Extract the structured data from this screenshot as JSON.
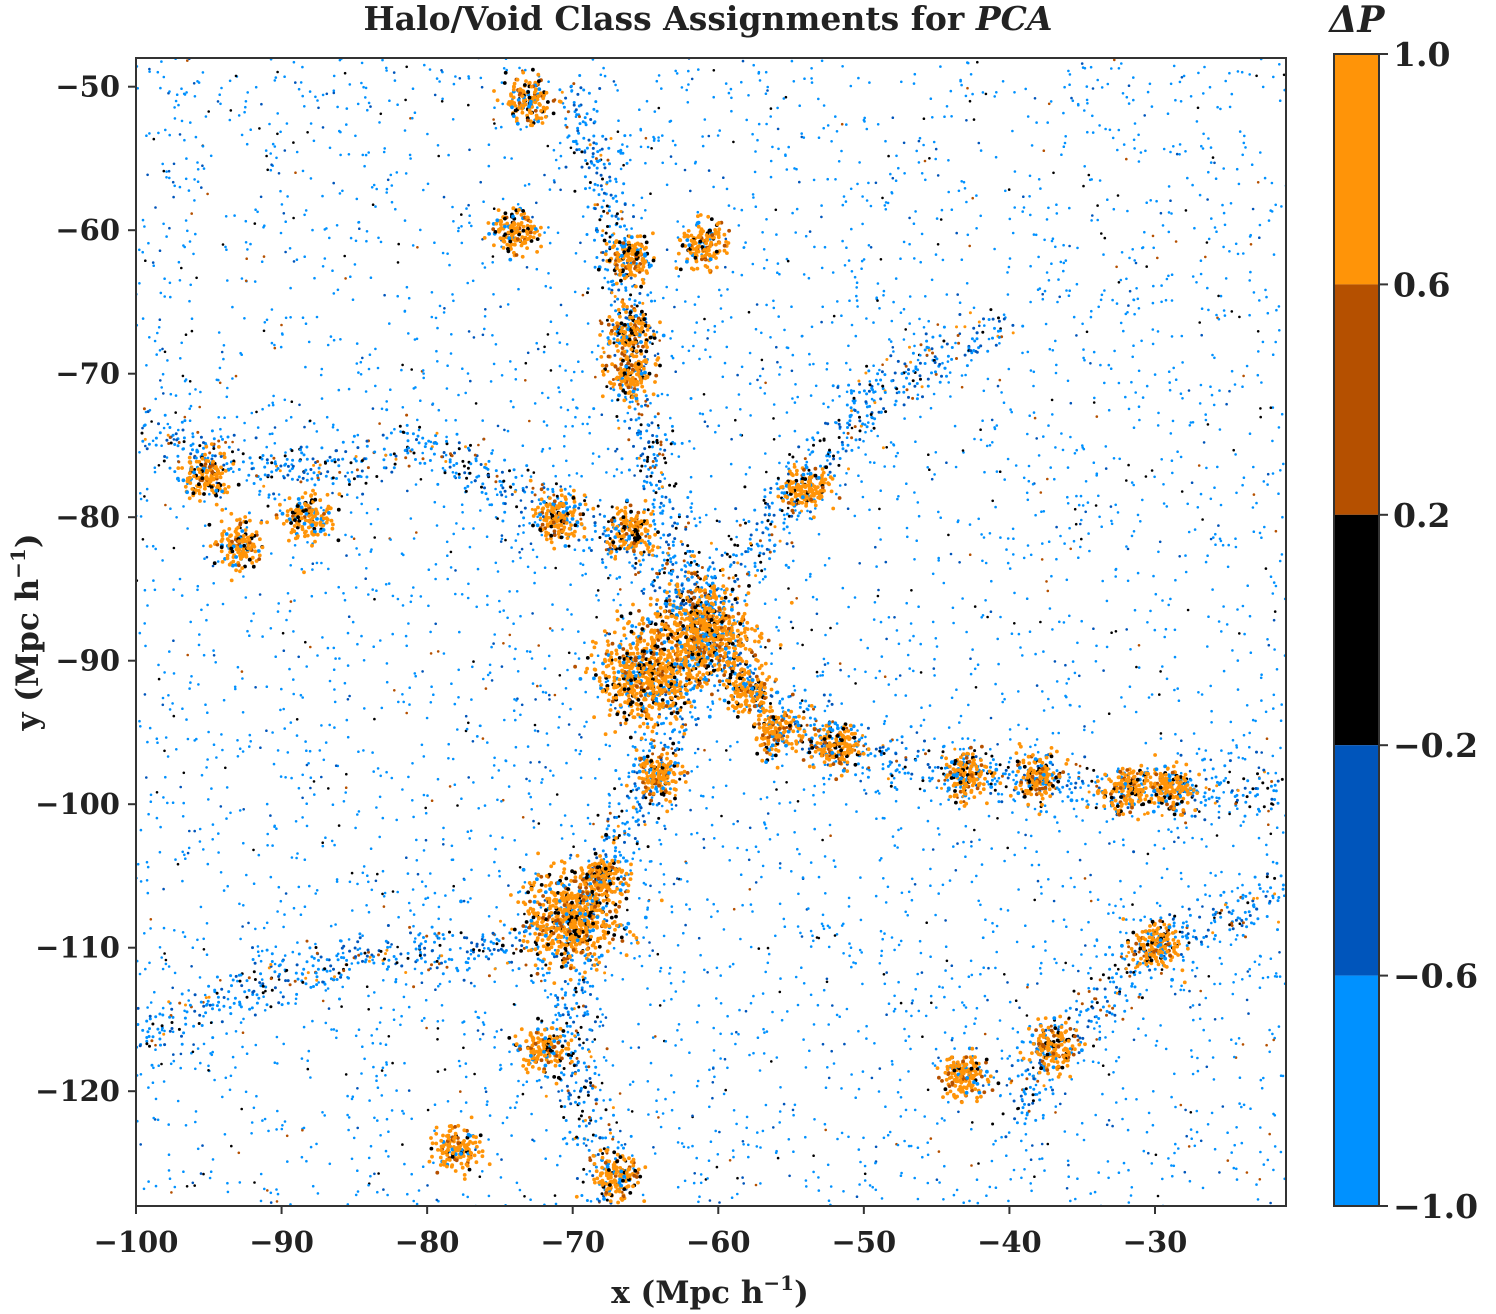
{
  "chart_data": {
    "type": "scatter",
    "title": "Halo/Void Class Assignments for",
    "title_math": "PCA",
    "xlabel": "x (Mpc h",
    "ylabel": "y (Mpc h",
    "unit_exponent": "−1",
    "xlim": [
      -100,
      -21
    ],
    "ylim": [
      -128,
      -48
    ],
    "x_ticks": [
      "−100",
      "−90",
      "−80",
      "−70",
      "−60",
      "−50",
      "−40",
      "−30"
    ],
    "x_tick_values": [
      -100,
      -90,
      -80,
      -70,
      -60,
      -50,
      -40,
      -30
    ],
    "y_ticks": [
      "−50",
      "−60",
      "−70",
      "−80",
      "−90",
      "−100",
      "−110",
      "−120"
    ],
    "y_tick_values": [
      -50,
      -60,
      -70,
      -80,
      -90,
      -100,
      -110,
      -120
    ],
    "grid": false,
    "colorbar": {
      "label": "ΔP",
      "range": [
        -1.0,
        1.0
      ],
      "ticks": [
        "1.0",
        "0.6",
        "0.2",
        "−0.2",
        "−0.6",
        "−1.0"
      ],
      "tick_values": [
        1.0,
        0.6,
        0.2,
        -0.2,
        -0.6,
        -1.0
      ],
      "bins": [
        {
          "from": 0.6,
          "to": 1.0,
          "color": "#ff9408"
        },
        {
          "from": 0.2,
          "to": 0.6,
          "color": "#b55000"
        },
        {
          "from": -0.2,
          "to": 0.2,
          "color": "#000000"
        },
        {
          "from": -0.6,
          "to": -0.2,
          "color": "#0055bb"
        },
        {
          "from": -1.0,
          "to": -0.6,
          "color": "#0091ff"
        }
      ]
    },
    "clusters": [
      {
        "x": -61,
        "y": -88,
        "value": 0.9
      },
      {
        "x": -65,
        "y": -91,
        "value": 0.9
      },
      {
        "x": -70,
        "y": -108,
        "value": 0.9
      },
      {
        "x": -68,
        "y": -105,
        "value": 0.9
      },
      {
        "x": -67,
        "y": -126,
        "value": 0.9
      },
      {
        "x": -72,
        "y": -117,
        "value": 0.9
      },
      {
        "x": -66,
        "y": -81,
        "value": 0.9
      },
      {
        "x": -71,
        "y": -80,
        "value": 0.9
      },
      {
        "x": -66,
        "y": -70,
        "value": 0.9
      },
      {
        "x": -66,
        "y": -62,
        "value": 0.9
      },
      {
        "x": -61,
        "y": -61,
        "value": 0.9
      },
      {
        "x": -54,
        "y": -78,
        "value": 0.9
      },
      {
        "x": -29,
        "y": -99,
        "value": 0.9
      },
      {
        "x": -32,
        "y": -99,
        "value": 0.9
      },
      {
        "x": -38,
        "y": -98,
        "value": 0.9
      },
      {
        "x": -43,
        "y": -98,
        "value": 0.9
      },
      {
        "x": -52,
        "y": -96,
        "value": 0.9
      },
      {
        "x": -56,
        "y": -95,
        "value": 0.9
      },
      {
        "x": -58,
        "y": -92,
        "value": 0.9
      },
      {
        "x": -64,
        "y": -98,
        "value": 0.9
      },
      {
        "x": -78,
        "y": -124,
        "value": 0.9
      },
      {
        "x": -30,
        "y": -110,
        "value": 0.9
      },
      {
        "x": -37,
        "y": -117,
        "value": 0.9
      },
      {
        "x": -43,
        "y": -119,
        "value": 0.9
      },
      {
        "x": -74,
        "y": -60,
        "value": 0.9
      },
      {
        "x": -88,
        "y": -80,
        "value": 0.9
      },
      {
        "x": -93,
        "y": -82,
        "value": 0.9
      },
      {
        "x": -95,
        "y": -77,
        "value": 0.9
      },
      {
        "x": -73,
        "y": -51,
        "value": 0.9
      },
      {
        "x": -66,
        "y": -67,
        "value": 0.9
      }
    ],
    "filaments": [
      [
        [
          -100,
          -74
        ],
        [
          -90,
          -77
        ],
        [
          -80,
          -75
        ],
        [
          -72,
          -79
        ],
        [
          -66,
          -82
        ],
        [
          -61,
          -87
        ]
      ],
      [
        [
          -61,
          -87
        ],
        [
          -58,
          -92
        ],
        [
          -52,
          -96
        ],
        [
          -43,
          -98
        ],
        [
          -32,
          -99
        ],
        [
          -21,
          -99
        ]
      ],
      [
        [
          -61,
          -87
        ],
        [
          -64,
          -97
        ],
        [
          -68,
          -105
        ],
        [
          -70,
          -110
        ],
        [
          -70,
          -118
        ],
        [
          -67,
          -128
        ]
      ],
      [
        [
          -61,
          -87
        ],
        [
          -64,
          -78
        ],
        [
          -66,
          -70
        ],
        [
          -67,
          -60
        ],
        [
          -70,
          -50
        ]
      ],
      [
        [
          -61,
          -87
        ],
        [
          -56,
          -80
        ],
        [
          -50,
          -72
        ],
        [
          -40,
          -66
        ]
      ],
      [
        [
          -21,
          -106
        ],
        [
          -30,
          -110
        ],
        [
          -37,
          -117
        ],
        [
          -40,
          -122
        ]
      ],
      [
        [
          -100,
          -116
        ],
        [
          -90,
          -112
        ],
        [
          -80,
          -110
        ],
        [
          -72,
          -110
        ]
      ]
    ]
  }
}
